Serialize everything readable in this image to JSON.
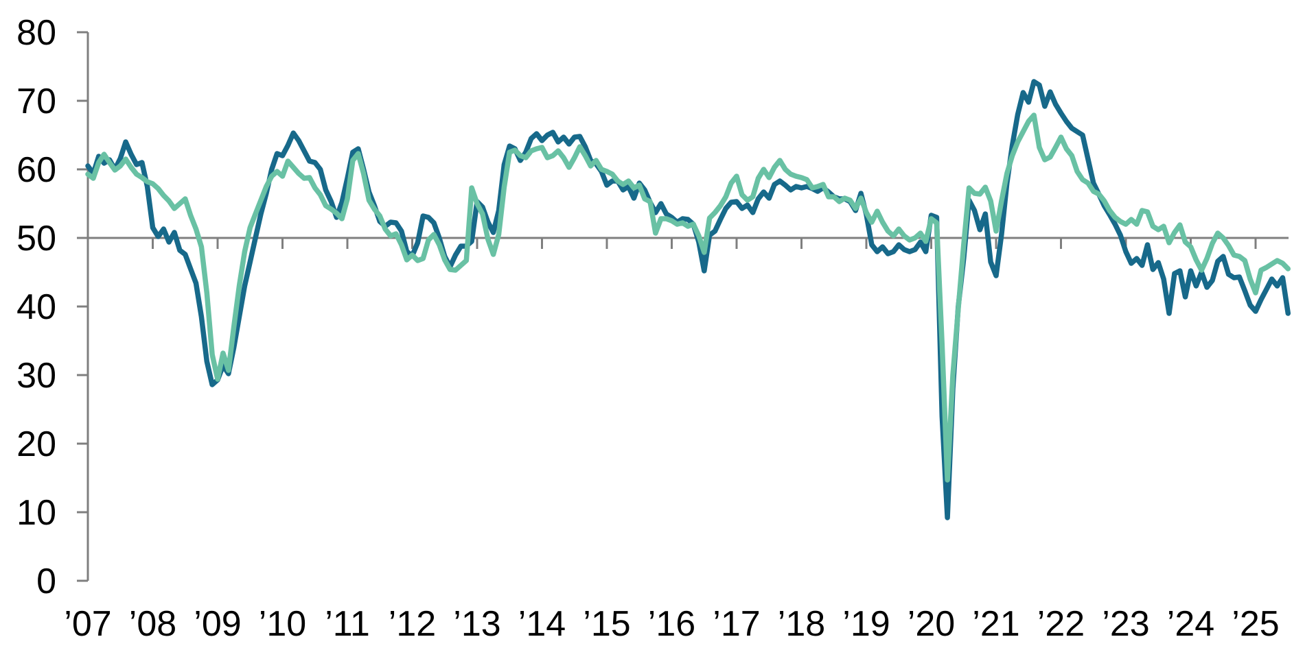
{
  "chart_data": {
    "type": "line",
    "title": "",
    "xlabel": "",
    "ylabel": "",
    "x_frequency": "monthly",
    "x_start": "2007-01",
    "x_end": "2025-07",
    "x_tick_labels": [
      "’07",
      "’08",
      "’09",
      "’10",
      "’11",
      "’12",
      "’13",
      "’14",
      "’15",
      "’16",
      "’17",
      "’18",
      "’19",
      "’20",
      "’21",
      "’22",
      "’23",
      "’24",
      "’25"
    ],
    "y_ticks": [
      0,
      10,
      20,
      30,
      40,
      50,
      60,
      70,
      80
    ],
    "ylim": [
      0,
      80
    ],
    "baseline_value": 50,
    "grid": "single horizontal reference line at 50, no other gridlines",
    "legend_position": "none",
    "axis_color": "#7f7f7f",
    "label_color": "#000000",
    "background_color": "#ffffff",
    "series": [
      {
        "name": "dark-teal-series",
        "color": "#17698a",
        "values": [
          60.5,
          59.4,
          61.9,
          60.9,
          61.4,
          60,
          61.6,
          64,
          62.2,
          60.7,
          61,
          57.5,
          51.5,
          50.2,
          51.3,
          49.4,
          50.8,
          48.2,
          47.6,
          45.5,
          43.4,
          38.5,
          32,
          28.6,
          29.3,
          31.4,
          30.2,
          34,
          38.5,
          43,
          46.5,
          50,
          53.5,
          56.5,
          60,
          62.3,
          62,
          63.5,
          65.3,
          64.2,
          62.7,
          61.2,
          61,
          60,
          57,
          55.3,
          53,
          55.2,
          58.7,
          62.5,
          63,
          60,
          56.7,
          54.7,
          52.4,
          51.7,
          52.3,
          52.2,
          51,
          48,
          47.4,
          49.3,
          53.2,
          53,
          52.2,
          50,
          47.3,
          45.8,
          47.5,
          48.8,
          48.8,
          49.5,
          55.3,
          54.5,
          52.3,
          50.8,
          54,
          60.7,
          63.4,
          63,
          61.3,
          62.5,
          64.5,
          65.2,
          64.2,
          65,
          65.4,
          64,
          64.7,
          63.7,
          64.7,
          64.8,
          63.3,
          61.3,
          60.8,
          59.7,
          57.7,
          58.3,
          58.3,
          57,
          57.5,
          55.8,
          58,
          57,
          55.2,
          53.7,
          55,
          53.5,
          53,
          52.3,
          52.8,
          52.7,
          52,
          49.4,
          45.2,
          50.4,
          51,
          52.7,
          54.3,
          55.2,
          55.3,
          54.3,
          54.8,
          53.7,
          55.7,
          56.7,
          55.8,
          57.8,
          58.3,
          57.7,
          57,
          57.5,
          57.3,
          57.5,
          57.2,
          56.8,
          57.3,
          56.7,
          56,
          55.7,
          55.7,
          55.3,
          54,
          56.5,
          53.4,
          49,
          48,
          48.7,
          47.7,
          48,
          49,
          48.3,
          48,
          48.3,
          49.4,
          48,
          53.3,
          53,
          24,
          9.2,
          28,
          40,
          47,
          55.5,
          54,
          51.2,
          53.5,
          46.5,
          44.5,
          50.5,
          58,
          63.5,
          68,
          71.2,
          69.8,
          72.8,
          72.3,
          69.2,
          71.3,
          69.5,
          68.2,
          67,
          66,
          65.5,
          65,
          61.5,
          58,
          56.4,
          54.7,
          53.4,
          52,
          50.4,
          48,
          46.3,
          47,
          46,
          49,
          45.4,
          46.4,
          44,
          39,
          44.8,
          45.2,
          41.4,
          45.2,
          43,
          45,
          42.8,
          43.8,
          46.6,
          47.3,
          44.7,
          44.2,
          44.3,
          42.3,
          40.2,
          39.3,
          41,
          42.5,
          44,
          43,
          44.2,
          39
        ]
      },
      {
        "name": "seafoam-green-series",
        "color": "#69c1a4",
        "values": [
          59.3,
          58.7,
          61,
          62.2,
          61,
          59.9,
          60.5,
          61.5,
          60.3,
          59.3,
          58.8,
          58.2,
          57.9,
          57.2,
          56.2,
          55.4,
          54.3,
          55,
          55.7,
          53.3,
          51.3,
          48.7,
          42,
          33,
          29.4,
          33.2,
          30.7,
          37,
          43,
          48,
          51.5,
          53.5,
          55.5,
          57.5,
          59,
          59.7,
          59,
          61.2,
          60.3,
          59.4,
          58.7,
          58.8,
          57.3,
          56.3,
          54.7,
          54.2,
          53.6,
          52.8,
          55.7,
          61.3,
          62.3,
          59.4,
          55.5,
          54.2,
          53.2,
          51.3,
          50.3,
          50.6,
          49,
          46.8,
          47.5,
          46.7,
          47,
          49.7,
          50.5,
          49,
          46.8,
          45.4,
          45.3,
          46,
          46.7,
          57.3,
          55,
          53.5,
          49.8,
          47.6,
          50.5,
          57.4,
          62.5,
          62.8,
          62,
          61.7,
          62.7,
          63,
          63.2,
          61.7,
          62,
          62.7,
          61.7,
          60.3,
          61.7,
          63.3,
          62,
          60.5,
          61.3,
          60,
          59.7,
          59.3,
          58.3,
          57.8,
          58.3,
          57.3,
          57.7,
          55.7,
          55.3,
          50.7,
          52.8,
          52.8,
          52.5,
          52,
          52.2,
          51.7,
          52,
          50.3,
          47.9,
          52.9,
          53.7,
          54.7,
          56,
          58,
          59,
          56.3,
          55.5,
          56,
          58.7,
          60,
          58.8,
          60.3,
          61.3,
          60,
          59.3,
          59,
          58.8,
          58.5,
          57.3,
          57.5,
          57.8,
          56,
          56,
          55.3,
          55.8,
          55.5,
          54.3,
          55.8,
          53.7,
          52.3,
          53.9,
          52.3,
          51,
          50.3,
          51.3,
          50.3,
          49.7,
          50,
          50.7,
          49.5,
          52.8,
          52.2,
          34.5,
          14.7,
          30,
          39.7,
          49,
          57.3,
          56.5,
          56.4,
          57.4,
          55.4,
          51,
          55.4,
          59.4,
          62,
          64,
          65.5,
          67,
          67.9,
          63.2,
          61.4,
          61.8,
          63.2,
          64.7,
          63,
          62,
          59.7,
          58.5,
          58,
          56.8,
          56.4,
          55.4,
          54,
          53,
          52.4,
          52,
          52.7,
          52,
          54,
          53.8,
          51.7,
          51.2,
          51.7,
          49.3,
          50.8,
          51.9,
          49.4,
          48.7,
          46.8,
          45.3,
          47,
          49.2,
          50.7,
          50,
          48.9,
          47.5,
          47.3,
          46.7,
          44,
          42,
          45.3,
          45.7,
          46.2,
          46.7,
          46.3,
          45.5
        ]
      }
    ]
  }
}
